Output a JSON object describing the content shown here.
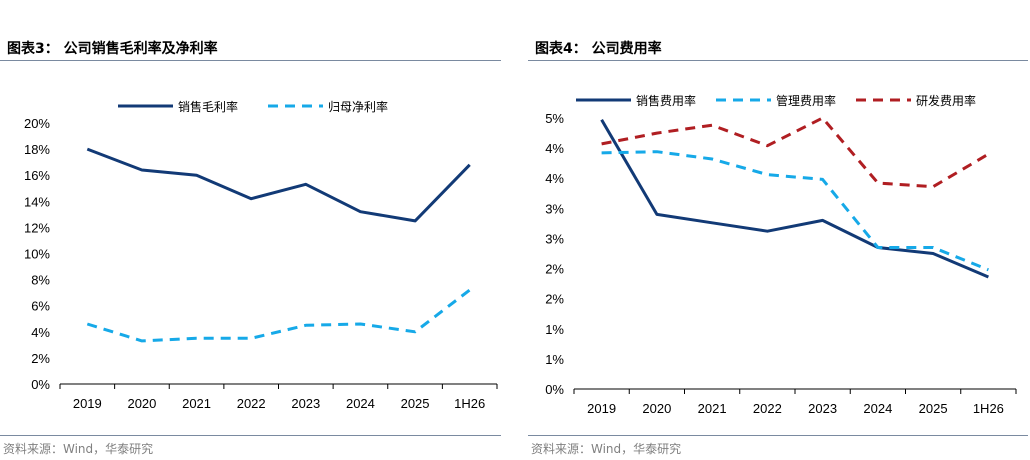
{
  "left": {
    "title": "图表3：  公司销售毛利率及净利率",
    "source": "资料来源：Wind，华泰研究",
    "chart_data": {
      "type": "line",
      "categories": [
        "2019",
        "2020",
        "2021",
        "2022",
        "2023",
        "2024",
        "2025",
        "1H26"
      ],
      "series": [
        {
          "name": "销售毛利率",
          "values": [
            18.0,
            16.4,
            16.0,
            14.2,
            15.3,
            13.2,
            12.5,
            16.8
          ],
          "color": "#123a76",
          "dash": false
        },
        {
          "name": "归母净利率",
          "values": [
            4.6,
            3.3,
            3.5,
            3.5,
            4.5,
            4.6,
            4.0,
            7.2
          ],
          "color": "#16a9e8",
          "dash": true
        }
      ],
      "yticks": [
        "0%",
        "2%",
        "4%",
        "6%",
        "8%",
        "10%",
        "12%",
        "14%",
        "16%",
        "18%",
        "20%"
      ],
      "ylim": [
        0,
        20
      ],
      "xlabel": "",
      "ylabel": "",
      "legend": "top"
    }
  },
  "right": {
    "title": "图表4：  公司费用率",
    "source": "资料来源：Wind，华泰研究",
    "chart_data": {
      "type": "line",
      "categories": [
        "2019",
        "2020",
        "2021",
        "2022",
        "2023",
        "2024",
        "2025",
        "1H26"
      ],
      "series": [
        {
          "name": "销售费用率",
          "values": [
            4.47,
            2.9,
            2.76,
            2.62,
            2.8,
            2.35,
            2.25,
            1.86
          ],
          "color": "#123a76",
          "dash": false
        },
        {
          "name": "管理费用率",
          "values": [
            3.92,
            3.94,
            3.82,
            3.56,
            3.48,
            2.35,
            2.35,
            1.98
          ],
          "color": "#16a9e8",
          "dash": true
        },
        {
          "name": "研发费用率",
          "values": [
            4.07,
            4.25,
            4.38,
            4.04,
            4.5,
            3.42,
            3.36,
            3.9
          ],
          "color": "#b01e22",
          "dash": true
        }
      ],
      "yticks": [
        "0%",
        "1%",
        "1%",
        "2%",
        "2%",
        "3%",
        "3%",
        "4%",
        "4%",
        "5%"
      ],
      "ylim": [
        0,
        4.5
      ],
      "xlabel": "",
      "ylabel": "",
      "legend": "top"
    }
  }
}
